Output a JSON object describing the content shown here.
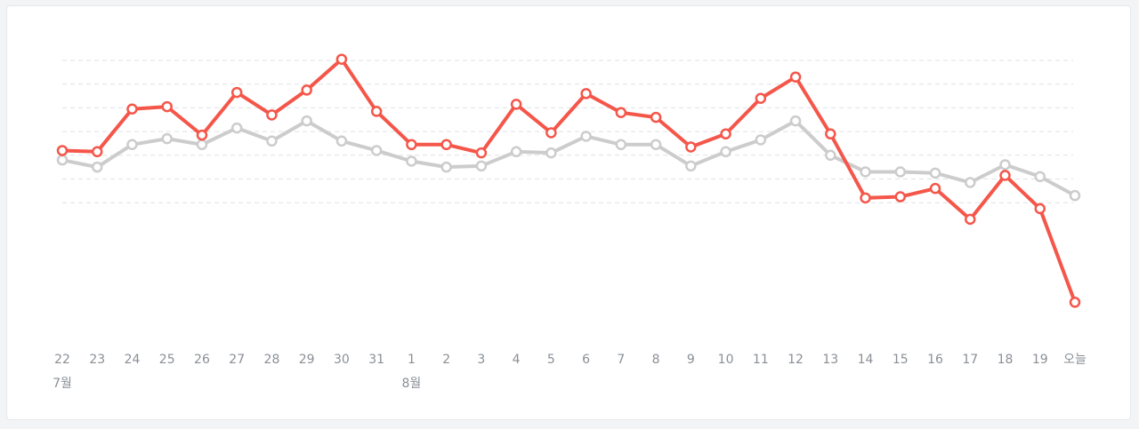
{
  "chart_data": {
    "type": "line",
    "categories": [
      "22",
      "23",
      "24",
      "25",
      "26",
      "27",
      "28",
      "29",
      "30",
      "31",
      "1",
      "2",
      "3",
      "4",
      "5",
      "6",
      "7",
      "8",
      "9",
      "10",
      "11",
      "12",
      "13",
      "14",
      "15",
      "16",
      "17",
      "18",
      "19",
      "오늘"
    ],
    "month_labels": [
      {
        "text": "7월",
        "category_index": 0
      },
      {
        "text": "8월",
        "category_index": 10
      }
    ],
    "series": [
      {
        "color": "#f5564a",
        "values": [
          62,
          61.5,
          79.5,
          80.5,
          68.5,
          86.5,
          77,
          87.5,
          100.5,
          78.5,
          64.5,
          64.5,
          61,
          81.5,
          69.5,
          86,
          78,
          76,
          63.5,
          69,
          84,
          93,
          69,
          42,
          42.5,
          46,
          33,
          51.5,
          37.5,
          -2
        ]
      },
      {
        "color": "#cccccc",
        "values": [
          58,
          55,
          64.5,
          67,
          64.5,
          71.5,
          66,
          74.5,
          66,
          62,
          57.5,
          55,
          55.5,
          61.5,
          61,
          68,
          64.5,
          64.5,
          55.5,
          61.5,
          66.5,
          74.5,
          60,
          53,
          53,
          52.5,
          48.5,
          56,
          51,
          43
        ]
      }
    ],
    "ylim": [
      -15,
      115
    ],
    "grid_values": [
      100,
      90,
      80,
      70,
      60,
      50,
      40
    ],
    "grid": true,
    "legend": "none"
  }
}
